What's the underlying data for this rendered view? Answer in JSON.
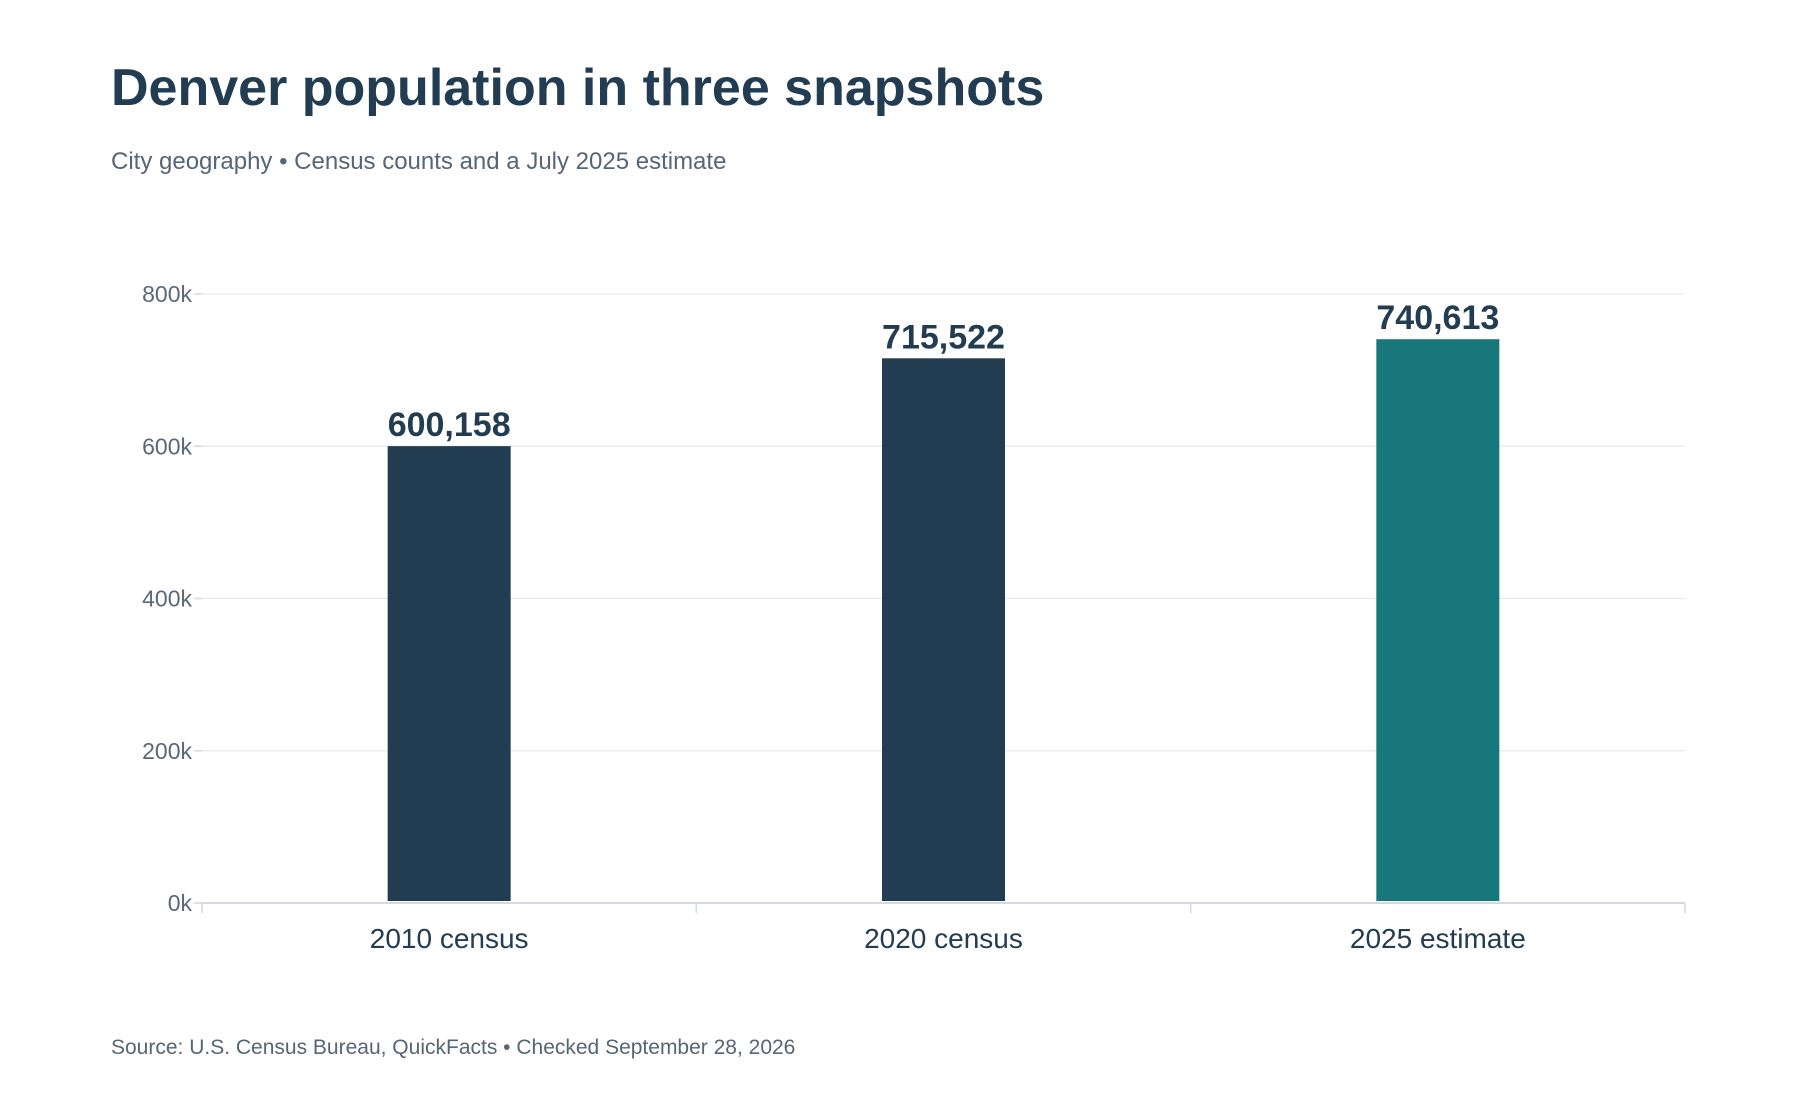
{
  "header": {
    "title": "Denver population in three snapshots",
    "subtitle": "City geography • Census counts and a July 2025 estimate"
  },
  "footer": {
    "source": "Source: U.S. Census Bureau, QuickFacts • Checked September 28, 2026"
  },
  "colors": {
    "census": "#223d52",
    "estimate": "#18777b",
    "gridline": "#e6e9ec",
    "axis": "#d3d9de"
  },
  "chart_data": {
    "type": "bar",
    "categories": [
      "2010 census",
      "2020 census",
      "2025 estimate"
    ],
    "values": [
      600158,
      715522,
      740613
    ],
    "value_labels": [
      "600,158",
      "715,522",
      "740,613"
    ],
    "bar_colors": [
      "#223d52",
      "#223d52",
      "#18777b"
    ],
    "ylim": [
      0,
      800000
    ],
    "y_ticks": [
      0,
      200000,
      400000,
      600000,
      800000
    ],
    "y_tick_labels": [
      "0k",
      "200k",
      "400k",
      "600k",
      "800k"
    ],
    "grid": true,
    "legend": "none",
    "xlabel": "",
    "ylabel": ""
  }
}
